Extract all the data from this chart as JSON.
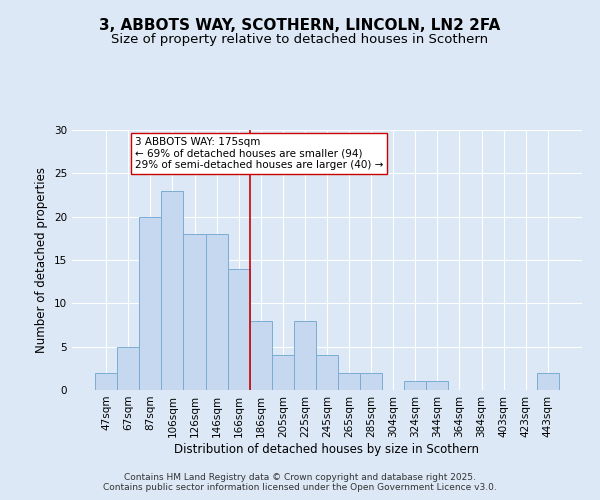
{
  "title": "3, ABBOTS WAY, SCOTHERN, LINCOLN, LN2 2FA",
  "subtitle": "Size of property relative to detached houses in Scothern",
  "xlabel": "Distribution of detached houses by size in Scothern",
  "ylabel": "Number of detached properties",
  "bins": [
    "47sqm",
    "67sqm",
    "87sqm",
    "106sqm",
    "126sqm",
    "146sqm",
    "166sqm",
    "186sqm",
    "205sqm",
    "225sqm",
    "245sqm",
    "265sqm",
    "285sqm",
    "304sqm",
    "324sqm",
    "344sqm",
    "364sqm",
    "384sqm",
    "403sqm",
    "423sqm",
    "443sqm"
  ],
  "counts": [
    2,
    5,
    20,
    23,
    18,
    18,
    14,
    8,
    4,
    8,
    4,
    2,
    2,
    0,
    1,
    1,
    0,
    0,
    0,
    0,
    2
  ],
  "bar_color": "#c5d8f0",
  "bar_edge_color": "#7aadd4",
  "vline_color": "#cc0000",
  "vline_bin_index": 6,
  "annotation_text": "3 ABBOTS WAY: 175sqm\n← 69% of detached houses are smaller (94)\n29% of semi-detached houses are larger (40) →",
  "annotation_box_color": "#ffffff",
  "annotation_box_edge_color": "#cc0000",
  "ylim": [
    0,
    30
  ],
  "yticks": [
    0,
    5,
    10,
    15,
    20,
    25,
    30
  ],
  "footer_text": "Contains HM Land Registry data © Crown copyright and database right 2025.\nContains public sector information licensed under the Open Government Licence v3.0.",
  "bg_color": "#dce8f5",
  "plot_bg_color": "#dce8f5",
  "title_fontsize": 11,
  "subtitle_fontsize": 9.5,
  "axis_label_fontsize": 8.5,
  "tick_fontsize": 7.5,
  "annotation_fontsize": 7.5,
  "footer_fontsize": 6.5
}
